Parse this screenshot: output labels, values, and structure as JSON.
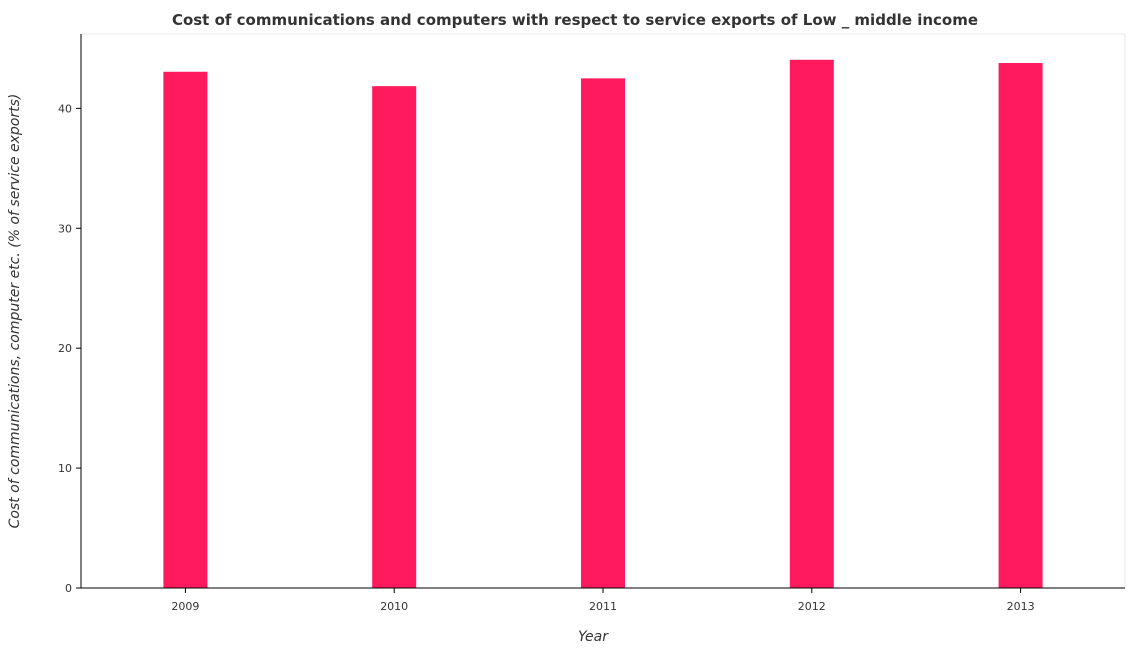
{
  "chart_data": {
    "type": "bar",
    "title": "Cost of communications and computers with respect to service exports of Low _ middle income",
    "xlabel": "Year",
    "ylabel": "Cost of communications, computer etc. (% of service exports)",
    "categories": [
      "2009",
      "2010",
      "2011",
      "2012",
      "2013"
    ],
    "values": [
      43.05,
      41.85,
      42.5,
      44.05,
      43.78
    ],
    "ylim": [
      0,
      46.2
    ],
    "yticks": [
      0,
      10,
      20,
      30,
      40
    ],
    "grid": false,
    "bar_color": "#ff1a5e"
  }
}
